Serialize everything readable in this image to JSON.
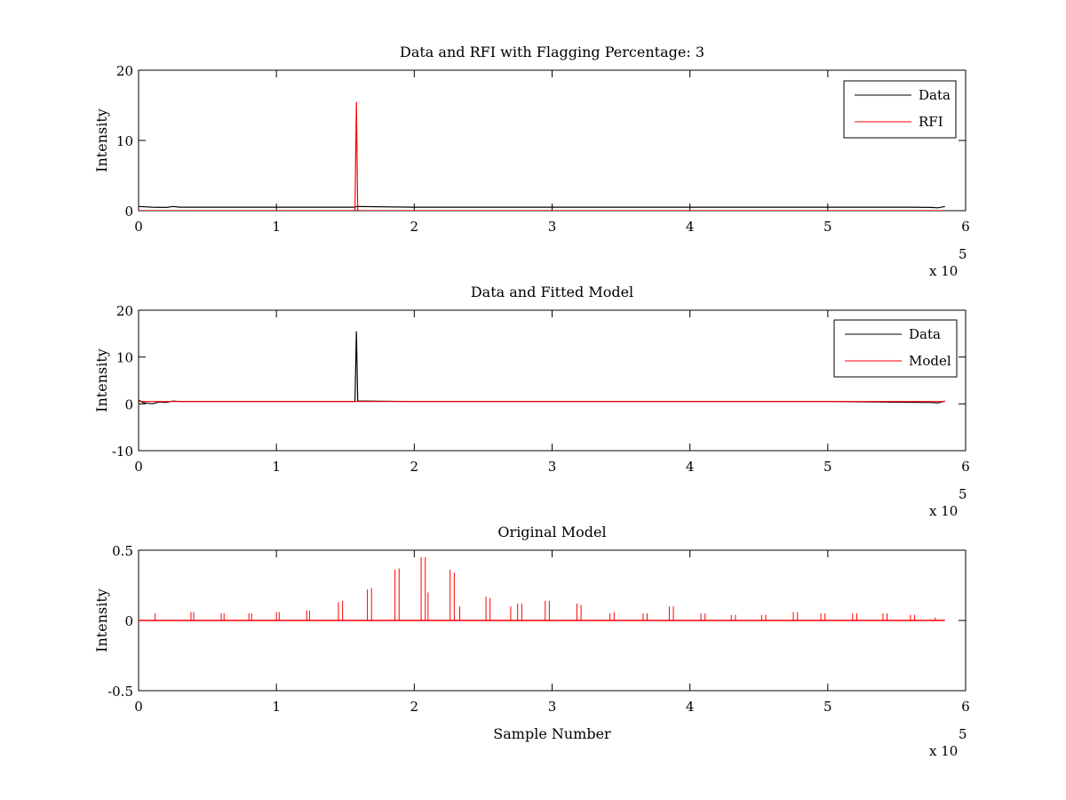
{
  "chart_data": [
    {
      "type": "line",
      "title": "Data and RFI with Flagging Percentage: 3",
      "xlabel": "",
      "ylabel": "Intensity",
      "xlim": [
        0,
        600000
      ],
      "ylim": [
        0,
        20
      ],
      "x_ticks": [
        0,
        1,
        2,
        3,
        4,
        5,
        6
      ],
      "x_tick_labels": [
        "0",
        "1",
        "2",
        "3",
        "4",
        "5",
        "6"
      ],
      "x_exponent_label": "x 10",
      "x_exponent_power": "5",
      "y_ticks": [
        0,
        10,
        20
      ],
      "y_tick_labels": [
        "0",
        "10",
        "20"
      ],
      "legend_position": "top-right",
      "series": [
        {
          "name": "Data",
          "color": "#000000",
          "points": [
            [
              0,
              0.6
            ],
            [
              5000,
              0.55
            ],
            [
              10000,
              0.5
            ],
            [
              20000,
              0.45
            ],
            [
              25000,
              0.6
            ],
            [
              30000,
              0.5
            ],
            [
              100000,
              0.5
            ],
            [
              157000,
              0.5
            ],
            [
              158000,
              0.6
            ],
            [
              200000,
              0.5
            ],
            [
              300000,
              0.5
            ],
            [
              400000,
              0.5
            ],
            [
              500000,
              0.5
            ],
            [
              560000,
              0.5
            ],
            [
              575000,
              0.45
            ],
            [
              580000,
              0.4
            ],
            [
              585000,
              0.6
            ]
          ]
        },
        {
          "name": "RFI",
          "color": "#ff0000",
          "points": [
            [
              0,
              0
            ],
            [
              157000,
              0
            ],
            [
              158000,
              15.5
            ],
            [
              159000,
              0
            ],
            [
              585000,
              0
            ]
          ]
        }
      ]
    },
    {
      "type": "line",
      "title": "Data and Fitted Model",
      "xlabel": "",
      "ylabel": "Intensity",
      "xlim": [
        0,
        600000
      ],
      "ylim": [
        -10,
        20
      ],
      "x_ticks": [
        0,
        1,
        2,
        3,
        4,
        5,
        6
      ],
      "x_tick_labels": [
        "0",
        "1",
        "2",
        "3",
        "4",
        "5",
        "6"
      ],
      "x_exponent_label": "x 10",
      "x_exponent_power": "5",
      "y_ticks": [
        -10,
        0,
        10,
        20
      ],
      "y_tick_labels": [
        "-10",
        "0",
        "10",
        "20"
      ],
      "legend_position": "top-right",
      "series": [
        {
          "name": "Data",
          "color": "#000000",
          "points": [
            [
              0,
              0.8
            ],
            [
              3000,
              0.3
            ],
            [
              5000,
              0.2
            ],
            [
              10000,
              0.0
            ],
            [
              15000,
              0.4
            ],
            [
              20000,
              0.3
            ],
            [
              25000,
              0.6
            ],
            [
              30000,
              0.5
            ],
            [
              157000,
              0.5
            ],
            [
              158000,
              15.5
            ],
            [
              159000,
              0.6
            ],
            [
              165000,
              0.6
            ],
            [
              200000,
              0.5
            ],
            [
              300000,
              0.5
            ],
            [
              400000,
              0.5
            ],
            [
              500000,
              0.5
            ],
            [
              575000,
              0.3
            ],
            [
              580000,
              0.2
            ],
            [
              585000,
              0.6
            ]
          ]
        },
        {
          "name": "Model",
          "color": "#ff0000",
          "points": [
            [
              0,
              0.5
            ],
            [
              100000,
              0.5
            ],
            [
              200000,
              0.5
            ],
            [
              300000,
              0.5
            ],
            [
              400000,
              0.5
            ],
            [
              500000,
              0.5
            ],
            [
              585000,
              0.5
            ]
          ]
        }
      ]
    },
    {
      "type": "line",
      "title": "Original Model",
      "xlabel": "Sample Number",
      "ylabel": "Intensity",
      "xlim": [
        0,
        600000
      ],
      "ylim": [
        -0.5,
        0.5
      ],
      "x_ticks": [
        0,
        1,
        2,
        3,
        4,
        5,
        6
      ],
      "x_tick_labels": [
        "0",
        "1",
        "2",
        "3",
        "4",
        "5",
        "6"
      ],
      "x_exponent_label": "x 10",
      "x_exponent_power": "5",
      "y_ticks": [
        -0.5,
        0,
        0.5
      ],
      "y_tick_labels": [
        "-0.5",
        "0",
        "0.5"
      ],
      "series": [
        {
          "name": "",
          "color": "#ff0000",
          "spikes": [
            [
              12000,
              0.05
            ],
            [
              38000,
              0.06
            ],
            [
              40000,
              0.06
            ],
            [
              60000,
              0.05
            ],
            [
              62000,
              0.05
            ],
            [
              80000,
              0.05
            ],
            [
              82000,
              0.05
            ],
            [
              100000,
              0.06
            ],
            [
              102000,
              0.06
            ],
            [
              122000,
              0.07
            ],
            [
              124000,
              0.07
            ],
            [
              145000,
              0.13
            ],
            [
              148000,
              0.14
            ],
            [
              166000,
              0.22
            ],
            [
              169000,
              0.23
            ],
            [
              186000,
              0.36
            ],
            [
              189000,
              0.37
            ],
            [
              205000,
              0.45
            ],
            [
              208000,
              0.45
            ],
            [
              210000,
              0.2
            ],
            [
              226000,
              0.36
            ],
            [
              229000,
              0.34
            ],
            [
              233000,
              0.1
            ],
            [
              252000,
              0.17
            ],
            [
              255000,
              0.16
            ],
            [
              270000,
              0.1
            ],
            [
              275000,
              0.12
            ],
            [
              278000,
              0.12
            ],
            [
              295000,
              0.14
            ],
            [
              298000,
              0.14
            ],
            [
              318000,
              0.12
            ],
            [
              321000,
              0.11
            ],
            [
              342000,
              0.05
            ],
            [
              345000,
              0.06
            ],
            [
              366000,
              0.05
            ],
            [
              369000,
              0.05
            ],
            [
              385000,
              0.1
            ],
            [
              388000,
              0.1
            ],
            [
              408000,
              0.05
            ],
            [
              411000,
              0.05
            ],
            [
              430000,
              0.04
            ],
            [
              433000,
              0.04
            ],
            [
              452000,
              0.04
            ],
            [
              455000,
              0.04
            ],
            [
              475000,
              0.06
            ],
            [
              478000,
              0.06
            ],
            [
              495000,
              0.05
            ],
            [
              498000,
              0.05
            ],
            [
              518000,
              0.05
            ],
            [
              521000,
              0.05
            ],
            [
              540000,
              0.05
            ],
            [
              543000,
              0.05
            ],
            [
              560000,
              0.04
            ],
            [
              563000,
              0.04
            ],
            [
              578000,
              0.02
            ]
          ]
        }
      ]
    }
  ]
}
